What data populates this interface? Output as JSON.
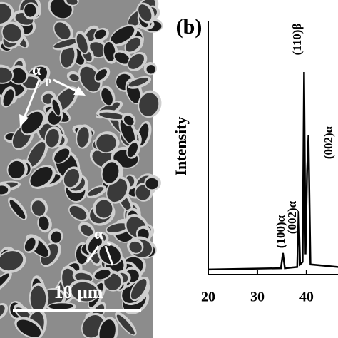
{
  "image_panel": {
    "annotations": [
      {
        "symbol": "α",
        "subscript": "p"
      },
      {
        "symbol": "α",
        "subscript": "s"
      }
    ],
    "scale_bar": "10 μm"
  },
  "chart_data": {
    "type": "line",
    "panel_label": "(b)",
    "y_label": "Intensity",
    "x": [
      20,
      34.8,
      35.2,
      35.6,
      38.1,
      38.4,
      38.7,
      39.2,
      39.5,
      39.8,
      40.1,
      40.4,
      40.8,
      46.5
    ],
    "values": [
      2,
      2.5,
      8.5,
      2.5,
      3,
      25,
      4,
      5,
      80,
      8,
      40,
      55,
      4,
      3
    ],
    "color": "#000000",
    "xlim": [
      20,
      46.4
    ],
    "ylim": [
      0,
      100
    ],
    "xticks": [
      20,
      30,
      40
    ],
    "peak_labels": [
      "(100)α",
      "(002)α",
      "(110)β",
      "(002)α"
    ]
  }
}
